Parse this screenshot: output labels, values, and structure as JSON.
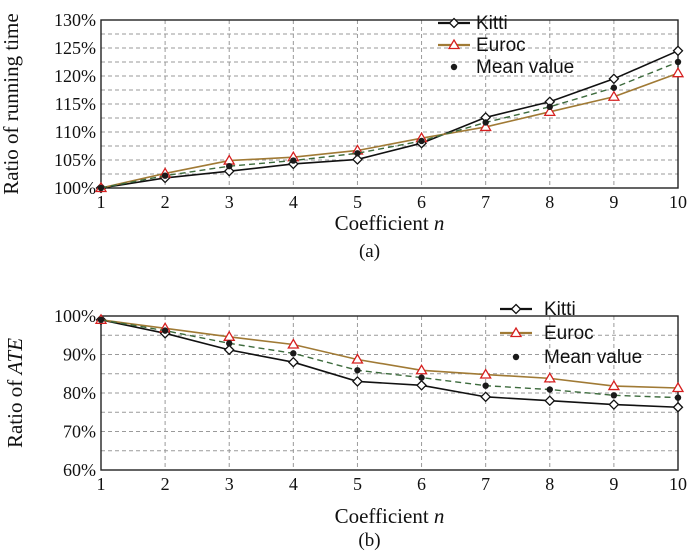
{
  "chart_data": [
    {
      "type": "line",
      "panel": "(a)",
      "xlabel_text": "Coefficient ",
      "xlabel_var": "n",
      "ylabel": "Ratio of running time",
      "ylabel_var": "",
      "x": [
        1,
        2,
        3,
        4,
        5,
        6,
        7,
        8,
        9,
        10
      ],
      "ylim": [
        100,
        130
      ],
      "yticks": [
        100,
        105,
        110,
        115,
        120,
        125,
        130
      ],
      "ytick_labels": [
        "100%",
        "105%",
        "110%",
        "115%",
        "120%",
        "125%",
        "130%"
      ],
      "grid": true,
      "legend_position": "top-right",
      "series": [
        {
          "name": "Kitti",
          "marker": "diamond",
          "color": "#111111",
          "dash": "solid",
          "values": [
            100,
            101.8,
            103.0,
            104.3,
            105.1,
            108.0,
            112.6,
            115.4,
            119.5,
            124.5
          ]
        },
        {
          "name": "Euroc",
          "marker": "triangle",
          "color": "#a07a35",
          "dash": "solid",
          "values": [
            100,
            102.6,
            104.9,
            105.5,
            106.7,
            108.9,
            110.9,
            113.6,
            116.3,
            120.5
          ]
        },
        {
          "name": "Mean value",
          "marker": "dot",
          "color": "#3d6b3d",
          "dash": "dashed",
          "values": [
            100,
            102.2,
            103.9,
            104.9,
            106.2,
            108.4,
            111.7,
            114.5,
            117.9,
            122.5
          ]
        }
      ]
    },
    {
      "type": "line",
      "panel": "(b)",
      "xlabel_text": "Coefficient ",
      "xlabel_var": "n",
      "ylabel": "Ratio of ",
      "ylabel_var": "ATE",
      "x": [
        1,
        2,
        3,
        4,
        5,
        6,
        7,
        8,
        9,
        10
      ],
      "ylim": [
        60,
        100
      ],
      "yticks": [
        60,
        70,
        80,
        90,
        100
      ],
      "ytick_labels": [
        "60%",
        "70%",
        "80%",
        "90%",
        "100%"
      ],
      "grid": true,
      "legend_position": "top-right",
      "series": [
        {
          "name": "Kitti",
          "marker": "diamond",
          "color": "#111111",
          "dash": "solid",
          "values": [
            99,
            95.5,
            91.2,
            88.0,
            83.0,
            82.0,
            79.0,
            78.0,
            77.0,
            76.3
          ]
        },
        {
          "name": "Euroc",
          "marker": "triangle",
          "color": "#a07a35",
          "dash": "solid",
          "values": [
            99,
            96.8,
            94.6,
            92.6,
            88.7,
            85.9,
            84.8,
            83.8,
            81.8,
            81.3
          ]
        },
        {
          "name": "Mean value",
          "marker": "dot",
          "color": "#3d6b3d",
          "dash": "dashed",
          "values": [
            99,
            96.2,
            92.9,
            90.3,
            85.9,
            84.0,
            81.9,
            80.9,
            79.4,
            78.8
          ]
        }
      ]
    }
  ]
}
